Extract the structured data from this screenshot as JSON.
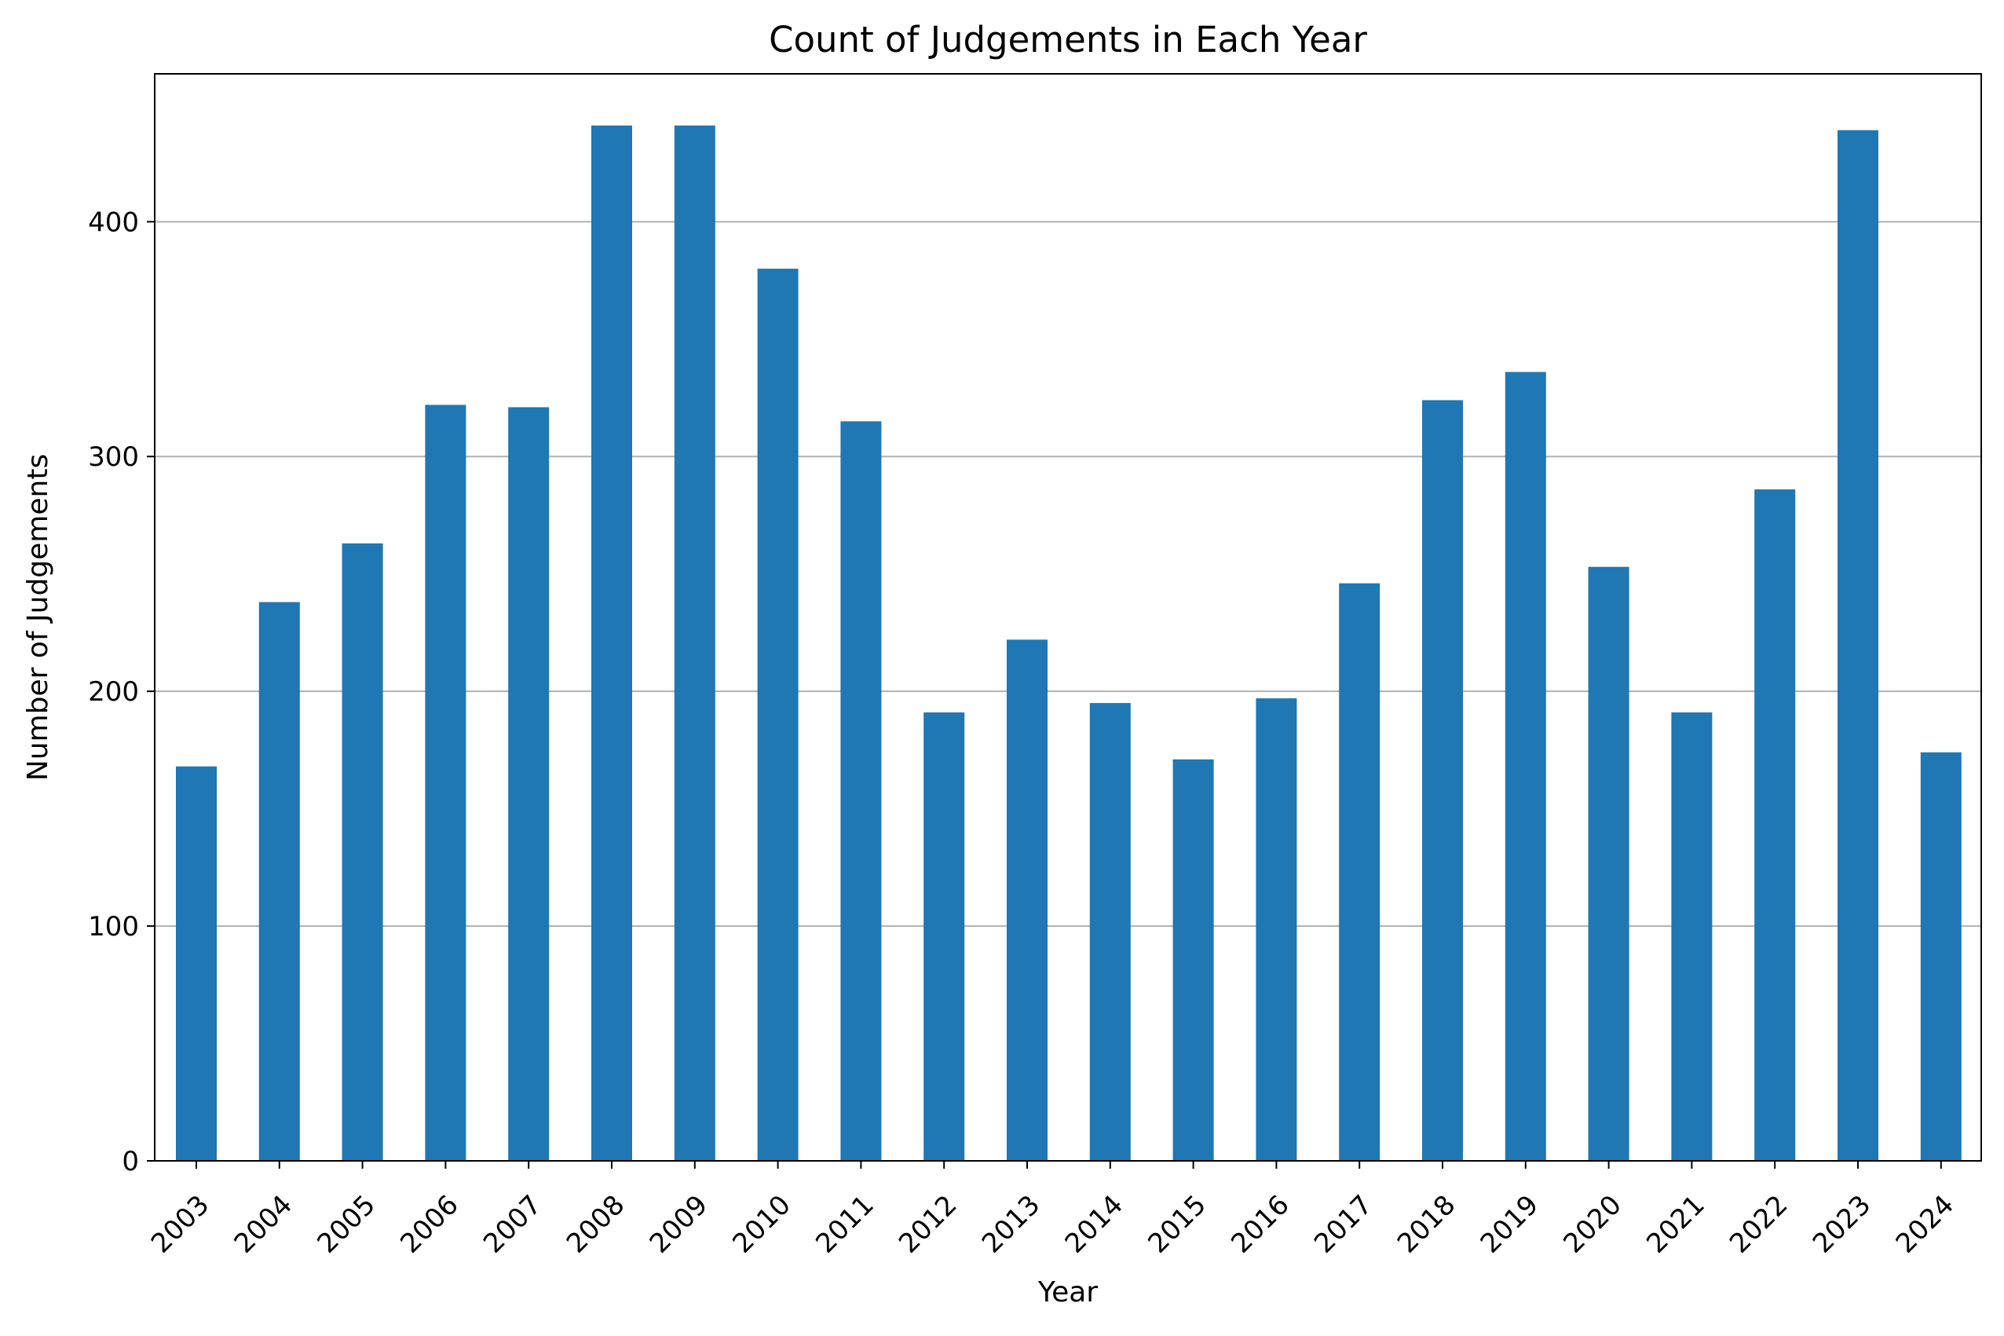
{
  "chart_data": {
    "type": "bar",
    "title": "Count of Judgements in Each Year",
    "xlabel": "Year",
    "ylabel": "Number of Judgements",
    "categories": [
      "2003",
      "2004",
      "2005",
      "2006",
      "2007",
      "2008",
      "2009",
      "2010",
      "2011",
      "2012",
      "2013",
      "2014",
      "2015",
      "2016",
      "2017",
      "2018",
      "2019",
      "2020",
      "2021",
      "2022",
      "2023",
      "2024"
    ],
    "values": [
      168,
      238,
      263,
      322,
      321,
      441,
      441,
      380,
      315,
      191,
      222,
      195,
      171,
      197,
      246,
      324,
      336,
      253,
      191,
      286,
      439,
      174
    ],
    "ylim": [
      0,
      463
    ],
    "yticks": [
      "0",
      "100",
      "200",
      "300",
      "400"
    ],
    "grid": "y-axis horizontal lines",
    "legend": "none",
    "colors": {
      "bar": "#1f77b4",
      "grid": "#b0b0b0",
      "axis": "#000000"
    }
  }
}
